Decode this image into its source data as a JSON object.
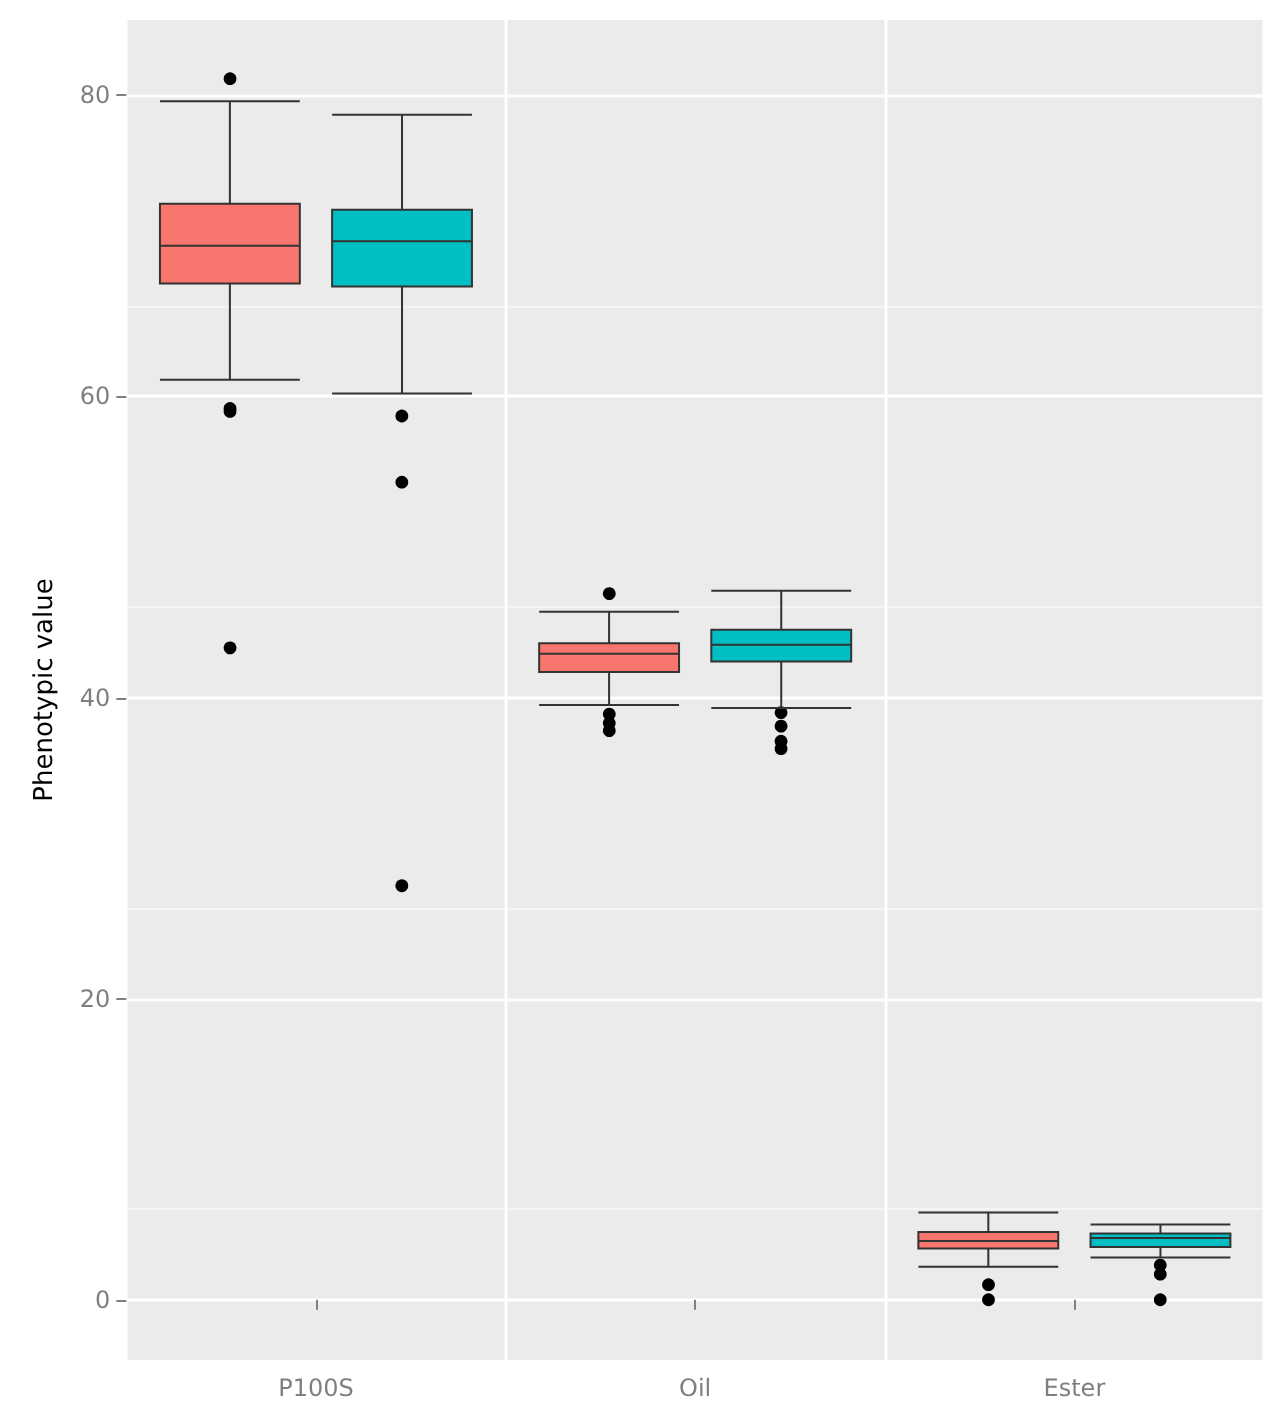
{
  "chart_data": {
    "type": "box",
    "ylabel": "Phenotypic value",
    "categories": [
      "P100S",
      "Oil",
      "Ester"
    ],
    "ylim": [
      -4,
      85
    ],
    "yticks": [
      0,
      20,
      40,
      60,
      80
    ],
    "grid": true,
    "series": [
      {
        "color": "#f8766d",
        "boxes": [
          {
            "low": 61.1,
            "q1": 67.5,
            "median": 70.0,
            "q3": 72.8,
            "high": 79.6,
            "outliers": [
              81.1,
              59.2,
              59.0,
              43.3
            ]
          },
          {
            "low": 39.5,
            "q1": 41.7,
            "median": 42.9,
            "q3": 43.6,
            "high": 45.7,
            "outliers": [
              46.9,
              38.9,
              38.3,
              37.8
            ]
          },
          {
            "low": 2.2,
            "q1": 3.4,
            "median": 3.9,
            "q3": 4.5,
            "high": 5.8,
            "outliers": [
              1.0,
              0.0
            ]
          }
        ]
      },
      {
        "color": "#00bfc4",
        "boxes": [
          {
            "low": 60.2,
            "q1": 67.3,
            "median": 70.3,
            "q3": 72.4,
            "high": 78.7,
            "outliers": [
              58.7,
              54.3,
              27.5
            ]
          },
          {
            "low": 39.3,
            "q1": 42.4,
            "median": 43.5,
            "q3": 44.5,
            "high": 47.1,
            "outliers": [
              39.0,
              38.1,
              37.1,
              36.6
            ]
          },
          {
            "low": 2.8,
            "q1": 3.5,
            "median": 4.1,
            "q3": 4.4,
            "high": 5.0,
            "outliers": [
              2.3,
              1.7,
              0.0
            ]
          }
        ]
      }
    ]
  }
}
